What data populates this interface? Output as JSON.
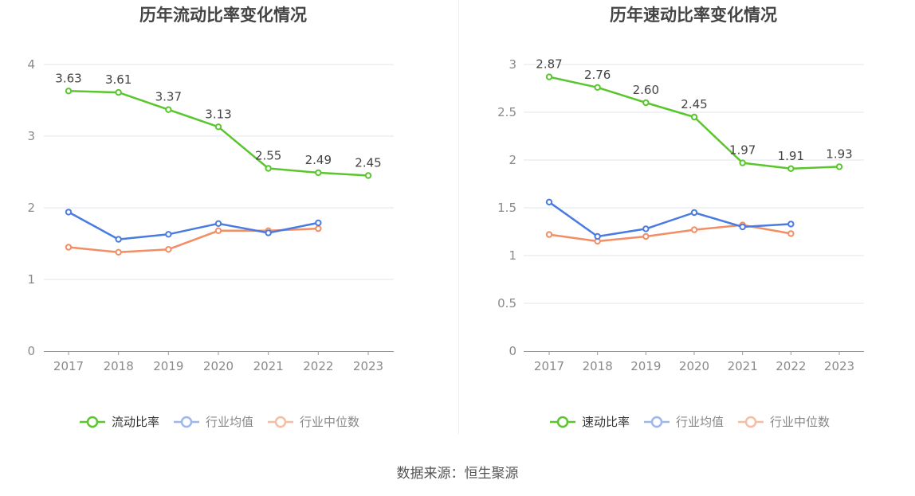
{
  "source_text": "数据来源：恒生聚源",
  "chart_data": [
    {
      "type": "line",
      "title": "历年流动比率变化情况",
      "x": [
        "2017",
        "2018",
        "2019",
        "2020",
        "2021",
        "2022",
        "2023"
      ],
      "ylim": [
        0,
        4
      ],
      "yticks": [
        0,
        1,
        2,
        3,
        4
      ],
      "grid": true,
      "legend_position": "bottom-center",
      "series": [
        {
          "name": "流动比率",
          "color": "#5ac62e",
          "labels": [
            "3.63",
            "3.61",
            "3.37",
            "3.13",
            "2.55",
            "2.49",
            "2.45"
          ],
          "values": [
            3.63,
            3.61,
            3.37,
            3.13,
            2.55,
            2.49,
            2.45
          ]
        },
        {
          "name": "行业均值",
          "color": "#4a7be0",
          "values": [
            1.94,
            1.56,
            1.63,
            1.78,
            1.65,
            1.79,
            null
          ]
        },
        {
          "name": "行业中位数",
          "color": "#f38d63",
          "values": [
            1.45,
            1.38,
            1.42,
            1.68,
            1.68,
            1.71,
            null
          ]
        }
      ]
    },
    {
      "type": "line",
      "title": "历年速动比率变化情况",
      "x": [
        "2017",
        "2018",
        "2019",
        "2020",
        "2021",
        "2022",
        "2023"
      ],
      "ylim": [
        0,
        3
      ],
      "yticks": [
        0,
        0.5,
        1,
        1.5,
        2,
        2.5,
        3
      ],
      "grid": true,
      "legend_position": "bottom-center",
      "series": [
        {
          "name": "速动比率",
          "color": "#5ac62e",
          "labels": [
            "2.87",
            "2.76",
            "2.60",
            "2.45",
            "1.97",
            "1.91",
            "1.93"
          ],
          "values": [
            2.87,
            2.76,
            2.6,
            2.45,
            1.97,
            1.91,
            1.93
          ]
        },
        {
          "name": "行业均值",
          "color": "#4a7be0",
          "values": [
            1.56,
            1.2,
            1.28,
            1.45,
            1.3,
            1.33,
            null
          ]
        },
        {
          "name": "行业中位数",
          "color": "#f38d63",
          "values": [
            1.22,
            1.15,
            1.2,
            1.27,
            1.32,
            1.23,
            null
          ]
        }
      ]
    }
  ]
}
